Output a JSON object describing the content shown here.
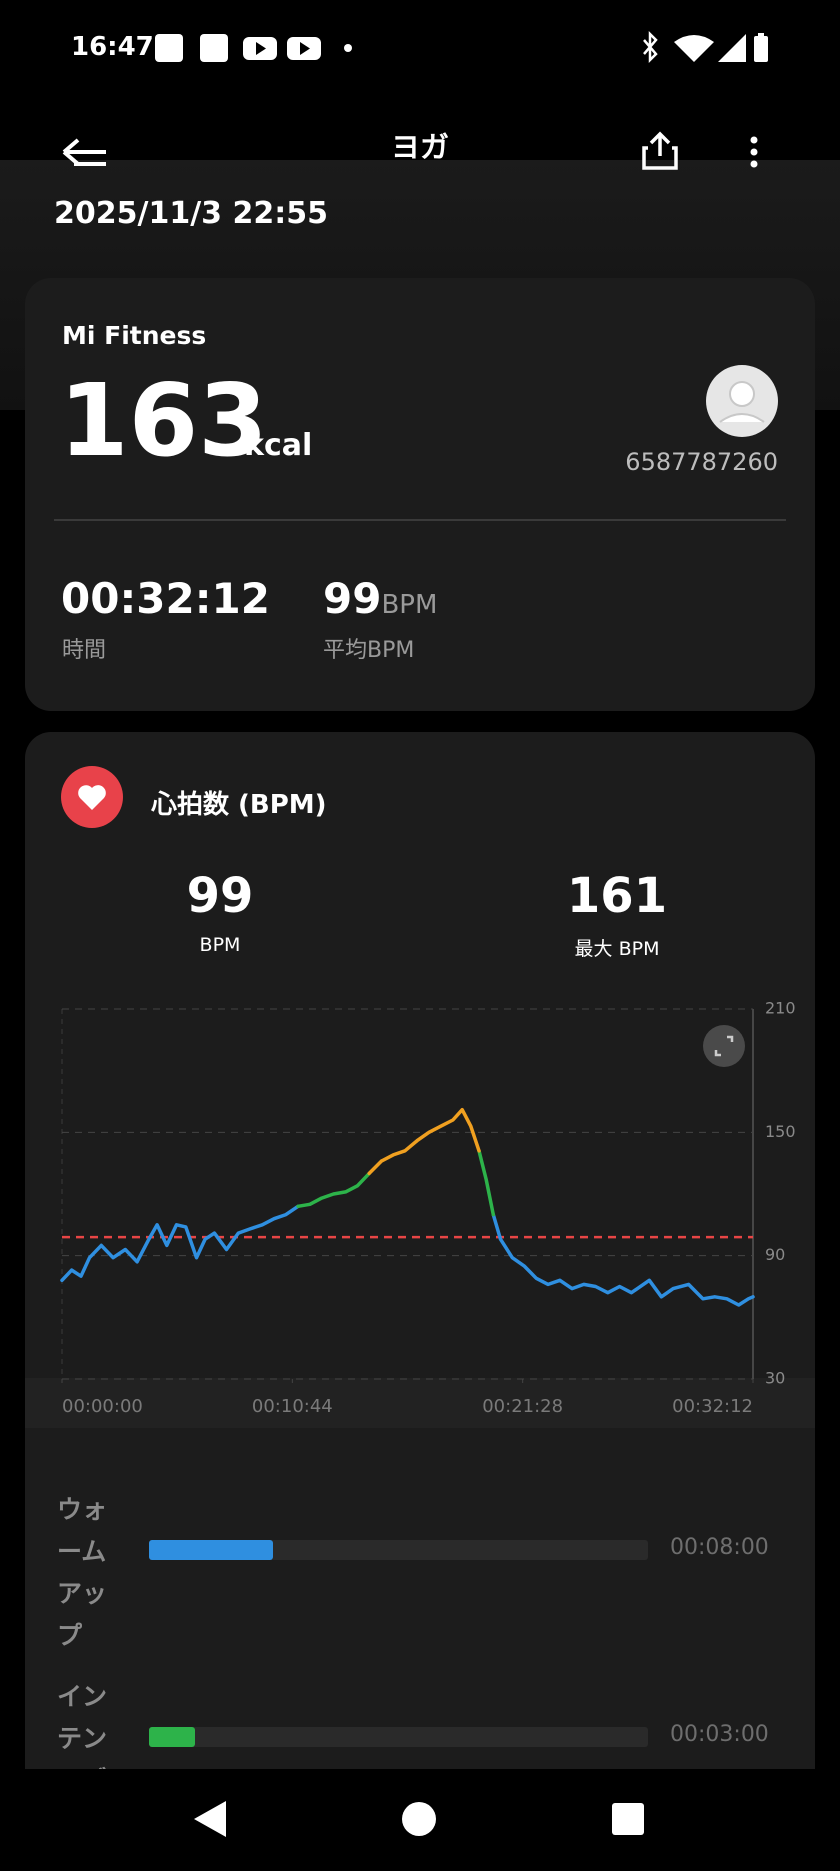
{
  "status_bar": {
    "time": "16:47"
  },
  "header": {
    "title": "ヨガ",
    "date": "2025/11/3 22:55"
  },
  "summary": {
    "source": "Mi Fitness",
    "calories": "163",
    "calories_unit": "kcal",
    "user_id": "6587787260",
    "duration": "00:32:12",
    "duration_label": "時間",
    "avg_hr": "99",
    "avg_hr_unit": "BPM",
    "avg_hr_label": "平均BPM"
  },
  "heart_rate": {
    "title": "心拍数 (BPM)",
    "avg": "99",
    "avg_unit": "BPM",
    "max": "161",
    "max_label": "最大 BPM"
  },
  "chart_data": {
    "type": "line",
    "x": [
      0,
      27,
      53,
      77,
      110,
      143,
      177,
      210,
      243,
      266,
      293,
      320,
      346,
      376,
      400,
      426,
      460,
      493,
      526,
      560,
      593,
      626,
      660,
      693,
      726,
      759,
      793,
      826,
      859,
      893,
      926,
      959,
      993,
      1026,
      1059,
      1093,
      1119,
      1143,
      1166,
      1186,
      1206,
      1226,
      1259,
      1292,
      1326,
      1359,
      1392,
      1426,
      1459,
      1492,
      1526,
      1559,
      1592,
      1642,
      1676,
      1709,
      1752,
      1792,
      1825,
      1859,
      1892,
      1919,
      1932
    ],
    "series": [
      {
        "color": "#2f8fe0",
        "values": [
          78,
          83,
          80,
          89,
          95,
          89,
          93,
          87,
          98,
          105,
          95,
          105,
          104,
          89,
          98,
          101,
          93,
          101,
          103,
          105,
          108,
          110,
          114,
          null,
          null,
          null,
          null,
          null,
          null,
          null,
          null,
          null,
          null,
          null,
          null,
          null,
          null,
          null,
          null,
          null,
          110,
          98,
          89,
          85,
          79,
          76,
          78,
          74,
          76,
          75,
          72,
          75,
          72,
          78,
          70,
          74,
          76,
          69,
          70,
          69,
          66,
          69,
          70
        ]
      },
      {
        "color": "#2db34a",
        "values": [
          null,
          null,
          null,
          null,
          null,
          null,
          null,
          null,
          null,
          null,
          null,
          null,
          null,
          null,
          null,
          null,
          null,
          null,
          null,
          null,
          null,
          null,
          114,
          115,
          118,
          120,
          121,
          124,
          130,
          null,
          null,
          null,
          null,
          null,
          null,
          null,
          null,
          null,
          141,
          127,
          110,
          null,
          null,
          null,
          null,
          null,
          null,
          null,
          null,
          null,
          null,
          null,
          null,
          null,
          null,
          null,
          null,
          null,
          null,
          null,
          null,
          null,
          null
        ]
      },
      {
        "color": "#f0a020",
        "values": [
          null,
          null,
          null,
          null,
          null,
          null,
          null,
          null,
          null,
          null,
          null,
          null,
          null,
          null,
          null,
          null,
          null,
          null,
          null,
          null,
          null,
          null,
          null,
          null,
          null,
          null,
          null,
          null,
          130,
          136,
          139,
          141,
          146,
          150,
          153,
          156,
          161,
          153,
          141,
          null,
          null,
          null,
          null,
          null,
          null,
          null,
          null,
          null,
          null,
          null,
          null,
          null,
          null,
          null,
          null,
          null,
          null,
          null,
          null,
          null,
          null,
          null,
          null
        ]
      }
    ],
    "xlim": [
      0,
      1932
    ],
    "xticks": [
      {
        "value": 0,
        "label": "00:00:00"
      },
      {
        "value": 644,
        "label": "00:10:44"
      },
      {
        "value": 1288,
        "label": "00:21:28"
      },
      {
        "value": 1932,
        "label": "00:32:12"
      }
    ],
    "ylim": [
      30,
      210
    ],
    "yticks": [
      30,
      90,
      150,
      210
    ],
    "grid": true,
    "reference_line": {
      "value": 99,
      "color": "#e84545"
    }
  },
  "zones": [
    {
      "name": "ウォームアップ",
      "color": "#2f8fe0",
      "duration": {
        "value": 480,
        "label": "00:08:00"
      }
    },
    {
      "name": "インテンシブ",
      "color": "#2db34a",
      "duration": {
        "value": 180,
        "label": "00:03:00"
      }
    }
  ]
}
